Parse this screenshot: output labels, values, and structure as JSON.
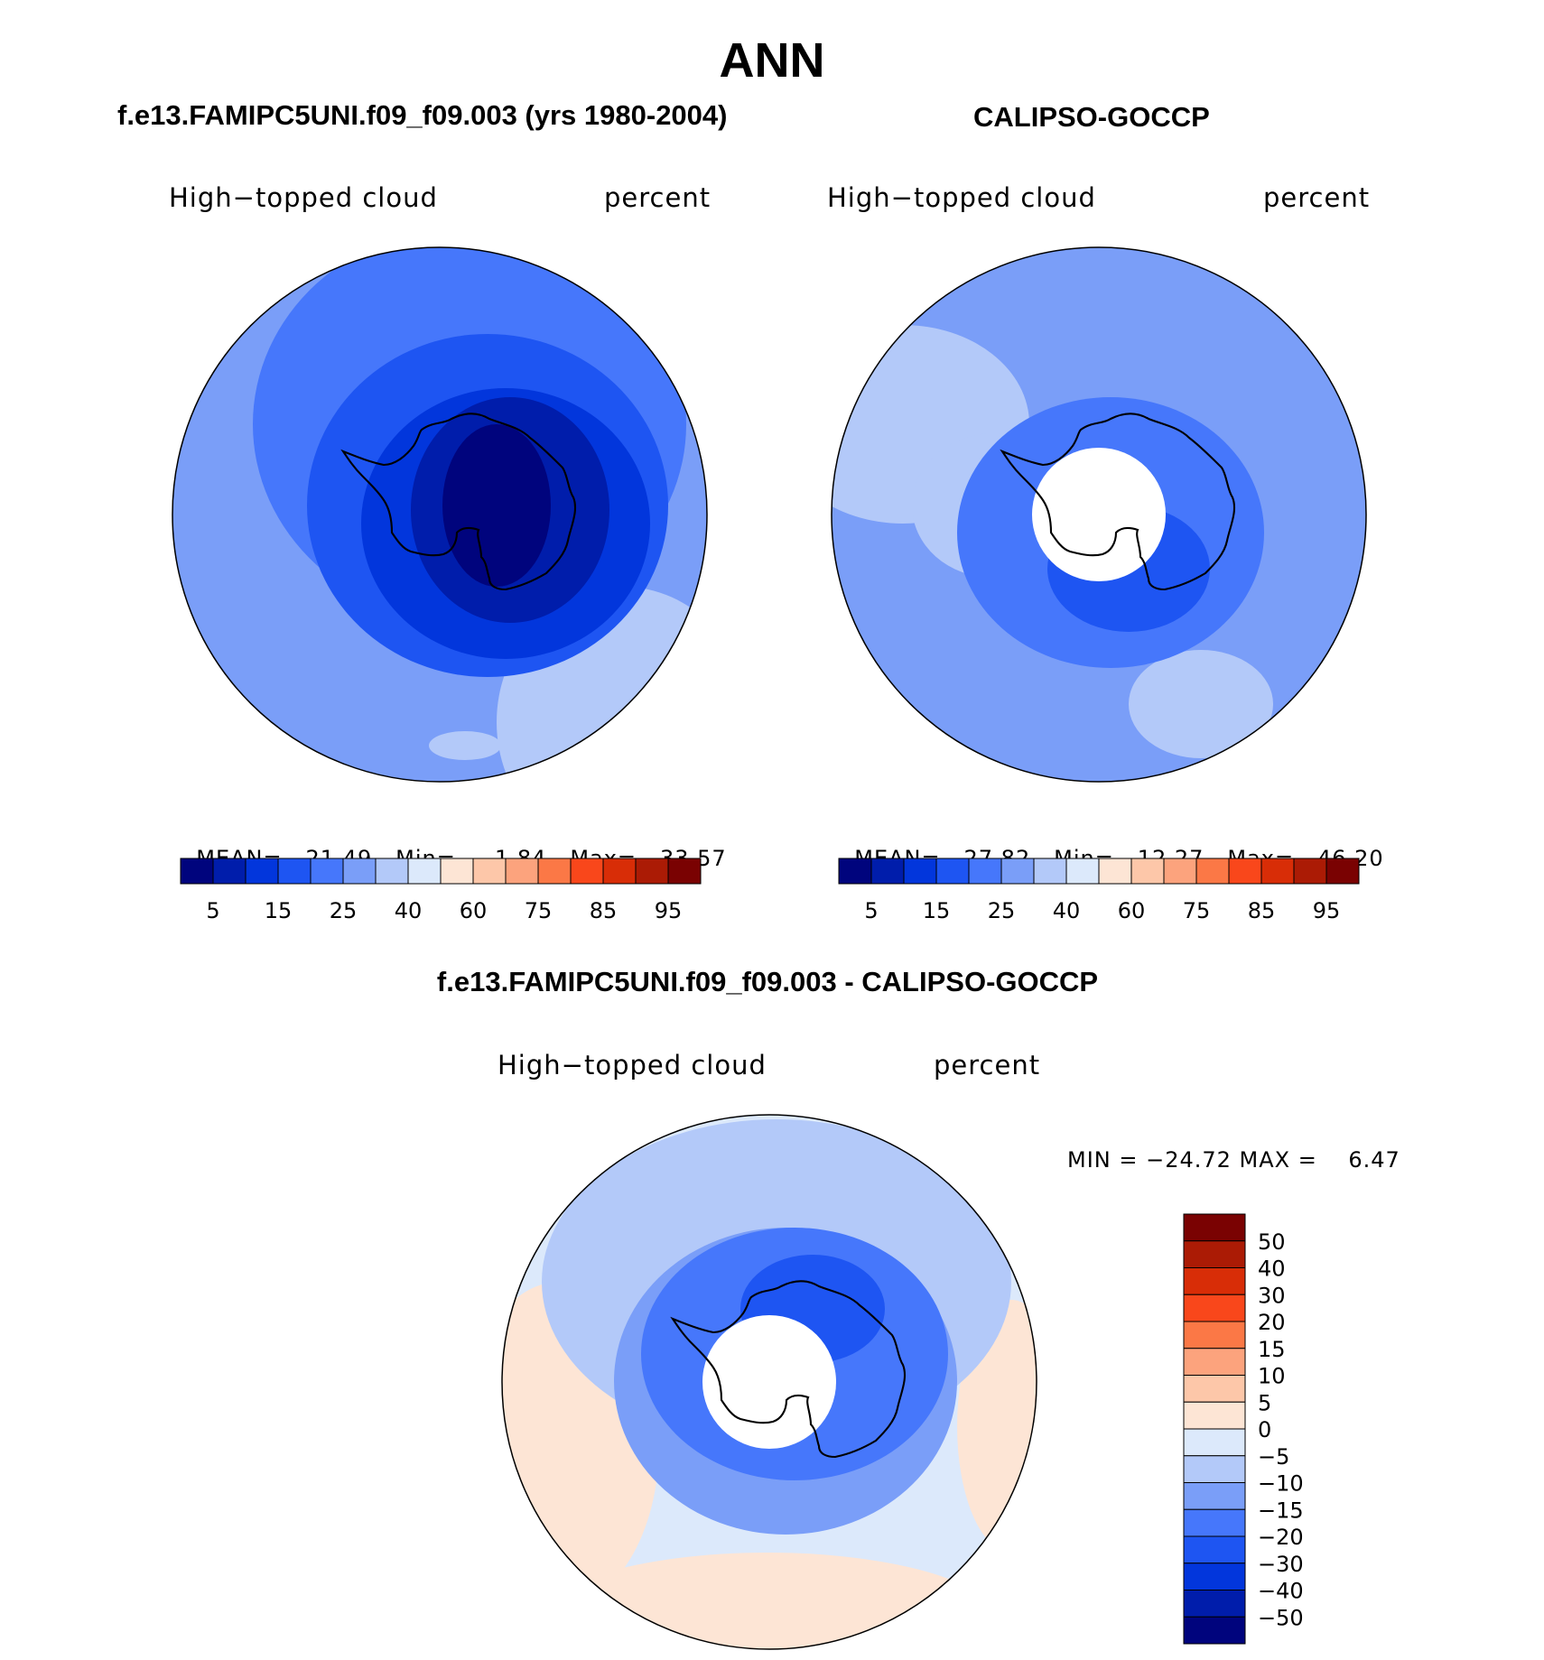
{
  "title": "ANN",
  "panels": [
    {
      "id": "model",
      "subtitle": "f.e13.FAMIPC5UNI.f09_f09.003 (yrs 1980-2004)",
      "variable": "High−topped cloud",
      "units": "percent",
      "stats": {
        "mean_label": "MEAN=",
        "mean": "21.49",
        "min_label": "Min=",
        "min": "1.84",
        "max_label": "Max=",
        "max": "33.57"
      }
    },
    {
      "id": "obs",
      "subtitle": "CALIPSO-GOCCP",
      "variable": "High−topped cloud",
      "units": "percent",
      "stats": {
        "mean_label": "MEAN=",
        "mean": "27.82",
        "min_label": "Min=",
        "min": "12.27",
        "max_label": "Max=",
        "max": "46.20"
      }
    },
    {
      "id": "diff",
      "subtitle": "f.e13.FAMIPC5UNI.f09_f09.003 - CALIPSO-GOCCP",
      "variable": "High−topped cloud",
      "units": "percent",
      "stats": {
        "text": "MIN = −24.72 MAX =    6.47"
      }
    }
  ],
  "colors": {
    "abs_scale": [
      "#00047d",
      "#001dab",
      "#0236dc",
      "#1e55f2",
      "#4677fb",
      "#7a9ef8",
      "#b3c9f9",
      "#dce9fb",
      "#fde5d5",
      "#fdc7a9",
      "#fca37d",
      "#fb7846",
      "#f9471b",
      "#d82d07",
      "#ab1b05",
      "#7a0202"
    ],
    "diff_scale": [
      "#00047d",
      "#001dab",
      "#0236dc",
      "#1e55f2",
      "#4677fb",
      "#7a9ef8",
      "#b3c9f9",
      "#dce9fb",
      "#fde5d5",
      "#fdc7a9",
      "#fca37d",
      "#fb7846",
      "#f9471b",
      "#d82d07",
      "#ab1b05",
      "#7a0202"
    ],
    "land_outline": "#000000"
  },
  "chart_data": [
    {
      "type": "heatmap",
      "projection": "south-polar-stereographic",
      "title": "f.e13.FAMIPC5UNI.f09_f09.003 (yrs 1980-2004)",
      "field": "High−topped cloud",
      "units": "percent",
      "mean": 21.49,
      "min": 1.84,
      "max": 33.57,
      "legend_levels": [
        5,
        10,
        15,
        20,
        25,
        30,
        40,
        50,
        60,
        70,
        75,
        80,
        85,
        90,
        95
      ],
      "legend_labels": [
        "5",
        "15",
        "25",
        "40",
        "60",
        "75",
        "85",
        "95"
      ]
    },
    {
      "type": "heatmap",
      "projection": "south-polar-stereographic",
      "title": "CALIPSO-GOCCP",
      "field": "High−topped cloud",
      "units": "percent",
      "mean": 27.82,
      "min": 12.27,
      "max": 46.2,
      "legend_levels": [
        5,
        10,
        15,
        20,
        25,
        30,
        40,
        50,
        60,
        70,
        75,
        80,
        85,
        90,
        95
      ],
      "legend_labels": [
        "5",
        "15",
        "25",
        "40",
        "60",
        "75",
        "85",
        "95"
      ]
    },
    {
      "type": "heatmap",
      "projection": "south-polar-stereographic",
      "title": "f.e13.FAMIPC5UNI.f09_f09.003 - CALIPSO-GOCCP",
      "field": "High−topped cloud",
      "units": "percent",
      "min": -24.72,
      "max": 6.47,
      "legend_levels": [
        -50,
        -40,
        -30,
        -20,
        -15,
        -10,
        -5,
        0,
        5,
        10,
        15,
        20,
        30,
        40,
        50
      ],
      "legend_labels": [
        "50",
        "40",
        "30",
        "20",
        "15",
        "10",
        "5",
        "0",
        "−5",
        "−10",
        "−15",
        "−20",
        "−30",
        "−40",
        "−50"
      ]
    }
  ]
}
